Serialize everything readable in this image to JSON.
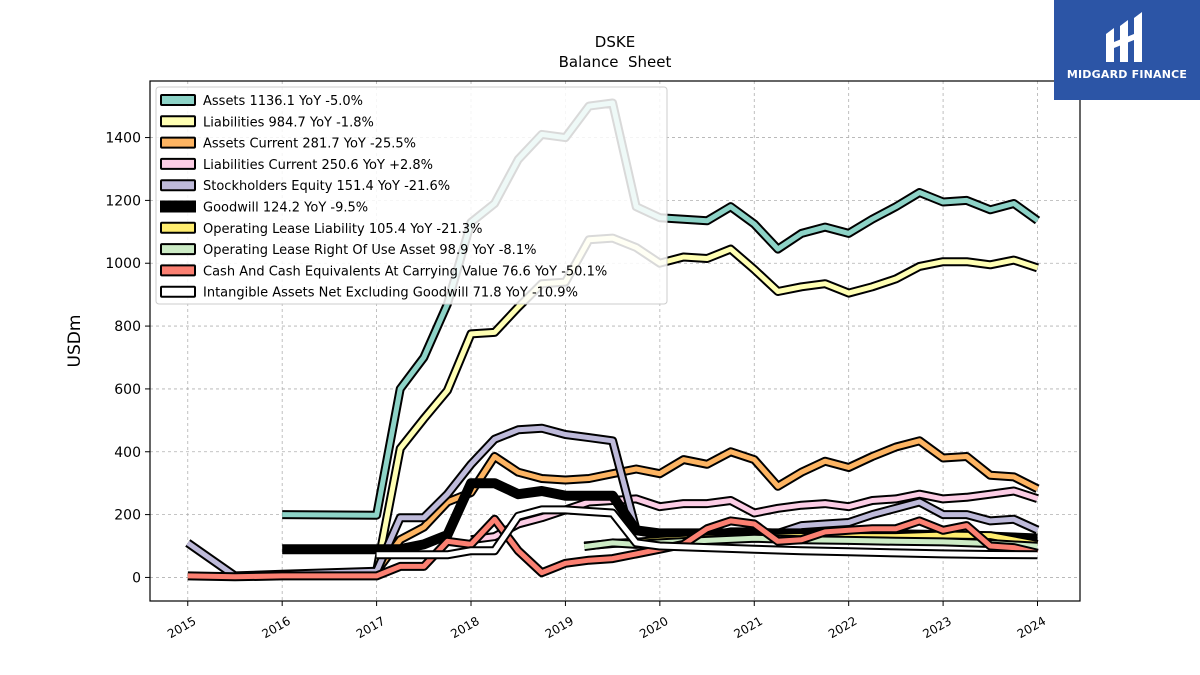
{
  "chart_data": {
    "type": "line",
    "title": "DSKE",
    "subtitle": "Balance  Sheet",
    "ylabel": "USDm",
    "xlabel": "",
    "xlim": [
      2014.6,
      2024.45
    ],
    "ylim": [
      -75,
      1580
    ],
    "x_ticks": [
      2015,
      2016,
      2017,
      2018,
      2019,
      2020,
      2021,
      2022,
      2023,
      2024
    ],
    "y_ticks": [
      0,
      200,
      400,
      600,
      800,
      1000,
      1200,
      1400
    ],
    "grid": true,
    "legend_position": "top-left",
    "series": [
      {
        "name": "Assets  1136.1 YoY -5.0%",
        "color": "#8dd3c7",
        "x": [
          2016,
          2017,
          2017.25,
          2017.5,
          2017.75,
          2018,
          2018.25,
          2018.5,
          2018.75,
          2019,
          2019.25,
          2019.5,
          2019.75,
          2020,
          2020.25,
          2020.5,
          2020.75,
          2021,
          2021.25,
          2021.5,
          2021.75,
          2022,
          2022.25,
          2022.5,
          2022.75,
          2023,
          2023.25,
          2023.5,
          2023.75,
          2024
        ],
        "y": [
          200,
          198,
          600,
          700,
          870,
          1130,
          1190,
          1330,
          1410,
          1400,
          1500,
          1510,
          1180,
          1145,
          1140,
          1135,
          1180,
          1125,
          1045,
          1095,
          1115,
          1095,
          1140,
          1180,
          1225,
          1195,
          1200,
          1170,
          1190,
          1136
        ]
      },
      {
        "name": "Liabilities  984.7 YoY -1.8%",
        "color": "#ffffb3",
        "x": [
          2017,
          2017.25,
          2017.5,
          2017.75,
          2018,
          2018.25,
          2018.5,
          2018.75,
          2019,
          2019.25,
          2019.5,
          2019.75,
          2020,
          2020.25,
          2020.5,
          2020.75,
          2021,
          2021.25,
          2021.5,
          2021.75,
          2022,
          2022.25,
          2022.5,
          2022.75,
          2023,
          2023.25,
          2023.5,
          2023.75,
          2024
        ],
        "y": [
          20,
          410,
          505,
          595,
          775,
          780,
          860,
          935,
          940,
          1075,
          1080,
          1050,
          1000,
          1020,
          1015,
          1045,
          980,
          910,
          925,
          935,
          905,
          925,
          950,
          990,
          1005,
          1005,
          995,
          1010,
          985
        ]
      },
      {
        "name": "Assets Current  281.7 YoY -25.5%",
        "color": "#fdb462",
        "x": [
          2017,
          2017.25,
          2017.5,
          2017.75,
          2018,
          2018.25,
          2018.5,
          2018.75,
          2019,
          2019.25,
          2019.5,
          2019.75,
          2020,
          2020.25,
          2020.5,
          2020.75,
          2021,
          2021.25,
          2021.5,
          2021.75,
          2022,
          2022.25,
          2022.5,
          2022.75,
          2023,
          2023.25,
          2023.5,
          2023.75,
          2024
        ],
        "y": [
          20,
          120,
          160,
          240,
          270,
          385,
          335,
          315,
          310,
          315,
          330,
          345,
          330,
          375,
          360,
          400,
          375,
          290,
          335,
          370,
          350,
          385,
          415,
          435,
          380,
          385,
          325,
          320,
          282
        ]
      },
      {
        "name": "Liabilities Current  250.6 YoY +2.8%",
        "color": "#fccde5",
        "x": [
          2018,
          2018.25,
          2018.5,
          2018.75,
          2019,
          2019.25,
          2019.5,
          2019.75,
          2020,
          2020.25,
          2020.5,
          2020.75,
          2021,
          2021.25,
          2021.5,
          2021.75,
          2022,
          2022.25,
          2022.5,
          2022.75,
          2023,
          2023.25,
          2023.5,
          2023.75,
          2024
        ],
        "y": [
          120,
          130,
          170,
          190,
          215,
          240,
          245,
          250,
          225,
          235,
          235,
          245,
          205,
          220,
          230,
          235,
          225,
          245,
          250,
          265,
          250,
          255,
          265,
          275,
          251
        ]
      },
      {
        "name": "Stockholders Equity  151.4 YoY -21.6%",
        "color": "#bebada",
        "x": [
          2015,
          2015.5,
          2016,
          2016.5,
          2017,
          2017.25,
          2017.5,
          2017.75,
          2018,
          2018.25,
          2018.5,
          2018.75,
          2019,
          2019.25,
          2019.5,
          2019.75,
          2020,
          2020.25,
          2020.5,
          2020.75,
          2021,
          2021.25,
          2021.5,
          2021.75,
          2022,
          2022.25,
          2022.5,
          2022.75,
          2023,
          2023.25,
          2023.5,
          2023.75,
          2024
        ],
        "y": [
          110,
          5,
          10,
          15,
          20,
          190,
          190,
          265,
          360,
          440,
          470,
          475,
          455,
          445,
          435,
          150,
          135,
          140,
          130,
          145,
          145,
          140,
          165,
          170,
          175,
          200,
          220,
          240,
          200,
          200,
          180,
          185,
          151
        ]
      },
      {
        "name": "Goodwill  124.2 YoY -9.5%",
        "color": "#000000",
        "x": [
          2016,
          2017,
          2017.25,
          2017.5,
          2017.75,
          2018,
          2018.25,
          2018.5,
          2018.75,
          2019,
          2019.25,
          2019.5,
          2019.75,
          2020,
          2020.5,
          2021,
          2021.5,
          2022,
          2022.5,
          2023,
          2023.5,
          2024
        ],
        "y": [
          90,
          90,
          90,
          105,
          135,
          300,
          300,
          265,
          275,
          260,
          260,
          260,
          150,
          140,
          140,
          140,
          140,
          140,
          137,
          135,
          130,
          124
        ]
      },
      {
        "name": "Operating Lease Liability  105.4 YoY -21.3%",
        "color": "#ffed6f",
        "x": [
          2019.2,
          2019.5,
          2019.75,
          2020,
          2020.5,
          2021,
          2021.5,
          2022,
          2022.5,
          2023,
          2023.5,
          2024
        ],
        "y": [
          100,
          108,
          112,
          118,
          125,
          128,
          130,
          130,
          130,
          135,
          133,
          105
        ]
      },
      {
        "name": "Operating Lease Right Of Use Asset  98.9 YoY -8.1%",
        "color": "#ccebc5",
        "x": [
          2019.2,
          2019.5,
          2019.75,
          2020,
          2020.5,
          2021,
          2021.5,
          2022,
          2022.5,
          2023,
          2023.5,
          2024
        ],
        "y": [
          98,
          110,
          105,
          110,
          118,
          125,
          120,
          118,
          115,
          113,
          108,
          99
        ]
      },
      {
        "name": "Cash And Cash Equivalents At Carrying Value  76.6 YoY -50.1%",
        "color": "#fb8072",
        "x": [
          2015,
          2015.5,
          2016,
          2016.5,
          2017,
          2017.25,
          2017.5,
          2017.75,
          2018,
          2018.25,
          2018.5,
          2018.75,
          2019,
          2019.25,
          2019.5,
          2019.75,
          2020,
          2020.25,
          2020.5,
          2020.75,
          2021,
          2021.25,
          2021.5,
          2021.75,
          2022,
          2022.25,
          2022.5,
          2022.75,
          2023,
          2023.25,
          2023.5,
          2023.75,
          2024
        ],
        "y": [
          5,
          2,
          5,
          5,
          5,
          35,
          35,
          115,
          105,
          185,
          85,
          15,
          45,
          55,
          60,
          75,
          90,
          105,
          155,
          180,
          170,
          115,
          120,
          145,
          150,
          155,
          155,
          180,
          150,
          165,
          100,
          95,
          77
        ]
      },
      {
        "name": "Intangible Assets Net Excluding Goodwill  71.8 YoY -10.9%",
        "color": "#ffffff",
        "x": [
          2017,
          2017.25,
          2017.5,
          2017.75,
          2018,
          2018.25,
          2018.5,
          2018.75,
          2019,
          2019.25,
          2019.5,
          2019.75,
          2020,
          2020.5,
          2021,
          2021.5,
          2022,
          2022.5,
          2023,
          2023.5,
          2024
        ],
        "y": [
          72,
          72,
          72,
          72,
          85,
          85,
          195,
          215,
          215,
          210,
          205,
          110,
          100,
          95,
          90,
          85,
          82,
          78,
          75,
          73,
          72
        ]
      }
    ]
  },
  "logo": {
    "text": "MIDGARD FINANCE",
    "background": "#2c55a6"
  }
}
